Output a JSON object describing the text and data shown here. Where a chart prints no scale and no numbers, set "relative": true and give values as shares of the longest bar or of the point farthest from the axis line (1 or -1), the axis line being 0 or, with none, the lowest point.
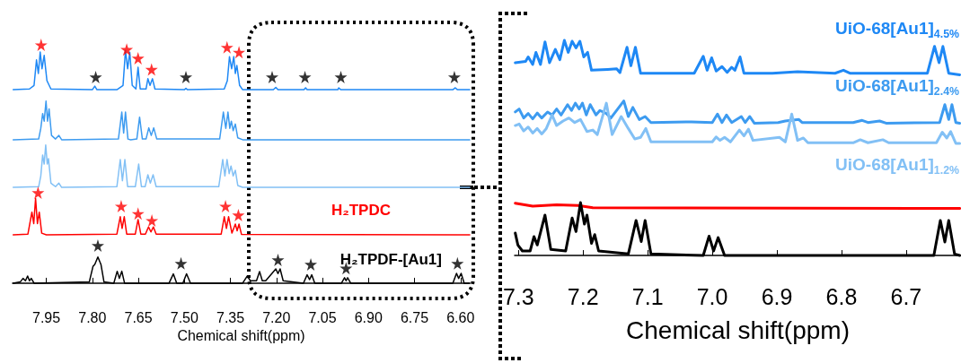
{
  "chart_data": [
    {
      "type": "line",
      "xlabel": "Chemical shift(ppm)",
      "relative": true,
      "marker": "none",
      "line_style": "solid",
      "legend": false,
      "xlim": [
        8.06,
        6.57
      ],
      "xticks": [
        7.95,
        {
          "value": 7.8,
          "label": "7.80"
        },
        7.65,
        {
          "value": 7.5,
          "label": "7.50"
        },
        7.35,
        {
          "value": 7.2,
          "label": "7.20"
        },
        7.05,
        {
          "value": 6.9,
          "label": "6.90"
        },
        6.75,
        {
          "value": 6.6,
          "label": "6.60"
        }
      ],
      "series": [
        {
          "color": "#1e88f5",
          "x": [
            8.058,
            8.005,
            7.99,
            7.982,
            7.976,
            7.97,
            7.964,
            7.957,
            7.948,
            7.935,
            7.8,
            7.792,
            7.785,
            7.72,
            7.7,
            7.692,
            7.685,
            7.678,
            7.67,
            7.658,
            7.651,
            7.644,
            7.625,
            7.619,
            7.612,
            7.604,
            7.596,
            7.5,
            7.495,
            7.49,
            7.37,
            7.36,
            7.353,
            7.346,
            7.339,
            7.334,
            7.329,
            7.32,
            7.31,
            7.21,
            7.202,
            7.195,
            7.11,
            7.105,
            7.1,
            7.0,
            6.997,
            6.99,
            6.625,
            6.617,
            6.61,
            6.57
          ],
          "values": [
            0.812,
            0.815,
            0.83,
            0.937,
            0.88,
            0.97,
            0.9,
            0.956,
            0.85,
            0.815,
            0.812,
            0.827,
            0.812,
            0.812,
            0.83,
            0.977,
            0.9,
            0.969,
            0.83,
            0.815,
            0.906,
            0.815,
            0.815,
            0.858,
            0.83,
            0.858,
            0.815,
            0.812,
            0.818,
            0.812,
            0.815,
            0.85,
            0.951,
            0.9,
            0.951,
            0.88,
            0.914,
            0.83,
            0.812,
            0.812,
            0.822,
            0.812,
            0.812,
            0.82,
            0.812,
            0.812,
            0.82,
            0.812,
            0.812,
            0.82,
            0.812,
            0.812
          ]
        },
        {
          "color": "#3d9bf0",
          "x": [
            8.058,
            7.975,
            7.968,
            7.962,
            7.957,
            7.951,
            7.946,
            7.941,
            7.933,
            7.92,
            7.909,
            7.9,
            7.715,
            7.704,
            7.698,
            7.692,
            7.684,
            7.675,
            7.655,
            7.646,
            7.637,
            7.625,
            7.616,
            7.608,
            7.6,
            7.59,
            7.385,
            7.373,
            7.365,
            7.358,
            7.352,
            7.347,
            7.341,
            7.334,
            7.326,
            7.31,
            6.57
          ],
          "values": [
            0.602,
            0.605,
            0.65,
            0.712,
            0.68,
            0.764,
            0.68,
            0.731,
            0.62,
            0.605,
            0.62,
            0.602,
            0.605,
            0.718,
            0.63,
            0.718,
            0.605,
            0.602,
            0.605,
            0.697,
            0.605,
            0.605,
            0.652,
            0.62,
            0.652,
            0.605,
            0.605,
            0.718,
            0.65,
            0.718,
            0.65,
            0.68,
            0.64,
            0.668,
            0.61,
            0.602,
            0.602
          ]
        },
        {
          "color": "#82c0f5",
          "x": [
            8.058,
            7.975,
            7.968,
            7.962,
            7.957,
            7.952,
            7.947,
            7.943,
            7.935,
            7.92,
            7.909,
            7.9,
            7.72,
            7.709,
            7.702,
            7.694,
            7.685,
            7.66,
            7.649,
            7.64,
            7.628,
            7.619,
            7.611,
            7.602,
            7.592,
            7.388,
            7.375,
            7.368,
            7.361,
            7.354,
            7.348,
            7.341,
            7.334,
            7.326,
            7.31,
            6.57
          ],
          "values": [
            0.402,
            0.405,
            0.45,
            0.538,
            0.5,
            0.58,
            0.5,
            0.523,
            0.42,
            0.405,
            0.42,
            0.402,
            0.405,
            0.519,
            0.43,
            0.519,
            0.405,
            0.405,
            0.5,
            0.405,
            0.405,
            0.455,
            0.42,
            0.455,
            0.405,
            0.405,
            0.519,
            0.45,
            0.519,
            0.46,
            0.492,
            0.45,
            0.474,
            0.41,
            0.402,
            0.402
          ]
        },
        {
          "name": "H₂TPDC",
          "color": "#ff0000",
          "x": [
            8.058,
            8.01,
            7.997,
            7.991,
            7.985,
            7.979,
            7.973,
            7.965,
            7.95,
            7.72,
            7.709,
            7.703,
            7.696,
            7.688,
            7.66,
            7.651,
            7.642,
            7.627,
            7.617,
            7.609,
            7.601,
            7.592,
            7.38,
            7.37,
            7.363,
            7.356,
            7.345,
            7.334,
            7.328,
            7.322,
            7.314,
            6.57
          ],
          "values": [
            0.203,
            0.206,
            0.298,
            0.25,
            0.355,
            0.25,
            0.298,
            0.21,
            0.203,
            0.206,
            0.279,
            0.23,
            0.279,
            0.206,
            0.206,
            0.267,
            0.206,
            0.206,
            0.236,
            0.215,
            0.236,
            0.206,
            0.206,
            0.279,
            0.23,
            0.279,
            0.21,
            0.248,
            0.22,
            0.248,
            0.205,
            0.203
          ]
        },
        {
          "name": "H₂TPDF-[Au1]",
          "color": "#000000",
          "x": [
            8.058,
            8.035,
            8.026,
            8.018,
            8.011,
            8.005,
            7.999,
            7.99,
            7.81,
            7.798,
            7.792,
            7.782,
            7.772,
            7.762,
            7.73,
            7.719,
            7.712,
            7.704,
            7.695,
            7.55,
            7.536,
            7.525,
            7.505,
            7.493,
            7.48,
            7.31,
            7.295,
            7.285,
            7.265,
            7.255,
            7.246,
            7.235,
            7.215,
            7.202,
            7.195,
            7.188,
            7.178,
            7.112,
            7.1,
            7.092,
            7.085,
            7.075,
            6.988,
            6.978,
            6.973,
            6.968,
            6.958,
            6.625,
            6.613,
            6.606,
            6.598,
            6.588,
            6.57
          ],
          "values": [
            0,
            0.005,
            0.02,
            0.01,
            0.03,
            0.01,
            0.02,
            0,
            0.005,
            0.07,
            0.079,
            0.11,
            0.079,
            0.005,
            0,
            0.05,
            0.02,
            0.05,
            0,
            0,
            0.039,
            0,
            0,
            0.039,
            0,
            0,
            0.03,
            0.01,
            0.01,
            0.049,
            0.01,
            0.01,
            0.04,
            0.06,
            0.04,
            0.06,
            0.01,
            0,
            0.035,
            0.015,
            0.035,
            0,
            0,
            0.023,
            0.01,
            0.023,
            0,
            0,
            0.041,
            0.02,
            0.041,
            0,
            0
          ]
        },
        {
          "type": "scatter",
          "marker": "star",
          "color": "#ff0000",
          "x": [
            7.967,
            7.688,
            7.651,
            7.607,
            7.361,
            7.322,
            7.977,
            7.706,
            7.651,
            7.606,
            7.366,
            7.324
          ],
          "values": [
            1.0,
            0.981,
            0.944,
            0.897,
            0.99,
            0.969,
            0.38,
            0.323,
            0.292,
            0.263,
            0.323,
            0.286
          ]
        },
        {
          "type": "scatter",
          "marker": "star",
          "color": "#000000",
          "x": [
            7.789,
            7.495,
            7.214,
            7.107,
            6.99,
            6.62,
            7.782,
            7.511,
            7.195,
            7.088,
            6.973,
            6.61
          ],
          "values": [
            0.865,
            0.865,
            0.865,
            0.865,
            0.865,
            0.865,
            0.158,
            0.083,
            0.098,
            0.079,
            0.063,
            0.083
          ]
        }
      ]
    },
    {
      "type": "line",
      "xlabel": "Chemical shift(ppm)",
      "relative": true,
      "marker": "none",
      "line_style": "solid",
      "legend": false,
      "xlim": [
        7.306,
        6.615
      ],
      "xticks": [
        7.3,
        7.2,
        7.1,
        {
          "value": 7.0,
          "label": "7.0"
        },
        6.9,
        6.8,
        6.7
      ],
      "series": [
        {
          "name": "UiO-68[Au1]$_{4.5%}$",
          "color": "#1e88f5",
          "x": [
            7.305,
            7.289,
            7.285,
            7.278,
            7.273,
            7.266,
            7.259,
            7.252,
            7.243,
            7.236,
            7.229,
            7.223,
            7.217,
            7.211,
            7.205,
            7.199,
            7.193,
            7.187,
            7.162,
            7.148,
            7.143,
            7.132,
            7.126,
            7.119,
            7.111,
            7.028,
            7.014,
            7.008,
            7.001,
            6.994,
            6.985,
            6.977,
            6.97,
            6.965,
            6.957,
            6.951,
            6.907,
            6.868,
            6.81,
            6.797,
            6.787,
            6.667,
            6.656,
            6.649,
            6.643,
            6.634,
            6.617
          ],
          "values": [
            0.896,
            0.902,
            0.923,
            0.888,
            0.944,
            0.888,
            0.993,
            0.896,
            0.958,
            0.91,
            1.0,
            0.944,
            0.996,
            0.965,
            0.996,
            0.923,
            0.944,
            0.861,
            0.865,
            0.868,
            0.85,
            0.968,
            0.882,
            0.968,
            0.847,
            0.847,
            0.926,
            0.861,
            0.919,
            0.857,
            0.878,
            0.851,
            0.875,
            0.861,
            0.923,
            0.847,
            0.847,
            0.854,
            0.847,
            0.861,
            0.847,
            0.847,
            0.972,
            0.896,
            0.972,
            0.847,
            0.84
          ]
        },
        {
          "name": "UiO-68[Au1]$_{2.4%}$",
          "color": "#3d9bf0",
          "x": [
            7.305,
            7.299,
            7.292,
            7.285,
            7.278,
            7.271,
            7.264,
            7.255,
            7.248,
            7.241,
            7.234,
            7.224,
            7.218,
            7.212,
            7.206,
            7.201,
            7.195,
            7.189,
            7.18,
            7.174,
            7.164,
            7.157,
            7.137,
            7.13,
            7.123,
            7.113,
            7.104,
            7.095,
            7.032,
            7.0,
            6.992,
            6.985,
            6.978,
            6.97,
            6.955,
            6.949,
            6.942,
            6.935,
            6.898,
            6.887,
            6.866,
            6.861,
            6.782,
            6.768,
            6.759,
            6.741,
            6.731,
            6.648,
            6.64,
            6.634,
            6.629,
            6.623,
            6.617
          ],
          "values": [
            0.667,
            0.681,
            0.639,
            0.66,
            0.635,
            0.662,
            0.639,
            0.667,
            0.653,
            0.681,
            0.653,
            0.701,
            0.674,
            0.708,
            0.681,
            0.708,
            0.653,
            0.701,
            0.653,
            0.674,
            0.66,
            0.639,
            0.718,
            0.646,
            0.688,
            0.632,
            0.646,
            0.618,
            0.621,
            0.618,
            0.657,
            0.618,
            0.653,
            0.618,
            0.646,
            0.618,
            0.646,
            0.615,
            0.618,
            0.625,
            0.632,
            0.618,
            0.618,
            0.628,
            0.618,
            0.625,
            0.615,
            0.618,
            0.701,
            0.632,
            0.701,
            0.618,
            0.615
          ]
        },
        {
          "name": "UiO-68[Au1]$_{1.2%}$",
          "color": "#82c0f5",
          "x": [
            7.305,
            7.299,
            7.292,
            7.285,
            7.278,
            7.271,
            7.264,
            7.257,
            7.248,
            7.241,
            7.231,
            7.222,
            7.213,
            7.204,
            7.194,
            7.185,
            7.178,
            7.164,
            7.155,
            7.141,
            7.13,
            7.12,
            7.111,
            7.103,
            7.095,
            7.0,
            6.994,
            6.988,
            6.981,
            6.972,
            6.958,
            6.951,
            6.944,
            6.937,
            6.896,
            6.887,
            6.877,
            6.868,
            6.859,
            6.852,
            6.782,
            6.771,
            6.759,
            6.736,
            6.727,
            6.653,
            6.644,
            6.637,
            6.631,
            6.623,
            6.617
          ],
          "values": [
            0.604,
            0.611,
            0.579,
            0.597,
            0.569,
            0.59,
            0.565,
            0.59,
            0.653,
            0.604,
            0.625,
            0.639,
            0.618,
            0.632,
            0.576,
            0.583,
            0.562,
            0.708,
            0.562,
            0.646,
            0.59,
            0.542,
            0.549,
            0.59,
            0.528,
            0.528,
            0.551,
            0.535,
            0.549,
            0.528,
            0.583,
            0.556,
            0.587,
            0.535,
            0.549,
            0.528,
            0.657,
            0.535,
            0.546,
            0.524,
            0.524,
            0.538,
            0.524,
            0.538,
            0.524,
            0.524,
            0.573,
            0.546,
            0.576,
            0.521,
            0.521
          ]
        },
        {
          "color": "#ff0000",
          "x": [
            7.305,
            7.278,
            7.241,
            7.208,
            7.185,
            6.617
          ],
          "values": [
            0.243,
            0.229,
            0.236,
            0.232,
            0.222,
            0.219
          ]
        },
        {
          "color": "#000000",
          "x": [
            7.305,
            7.301,
            7.294,
            7.282,
            7.276,
            7.271,
            7.259,
            7.25,
            7.227,
            7.217,
            7.211,
            7.204,
            7.198,
            7.194,
            7.187,
            7.182,
            7.176,
            7.13,
            7.118,
            7.11,
            7.104,
            7.095,
            7.014,
            7.005,
            6.998,
            6.991,
            6.981,
            6.861,
            6.657,
            6.647,
            6.64,
            6.634,
            6.625,
            6.617
          ],
          "values": [
            0.104,
            0.049,
            0.021,
            0.021,
            0.088,
            0.049,
            0.188,
            0.028,
            0.021,
            0.174,
            0.111,
            0.246,
            0.146,
            0.188,
            0.056,
            0.097,
            0.021,
            0.007,
            0.163,
            0.065,
            0.163,
            0.007,
            0,
            0.09,
            0.021,
            0.083,
            0,
            0,
            0,
            0.163,
            0.063,
            0.163,
            0.007,
            0
          ]
        }
      ]
    }
  ]
}
